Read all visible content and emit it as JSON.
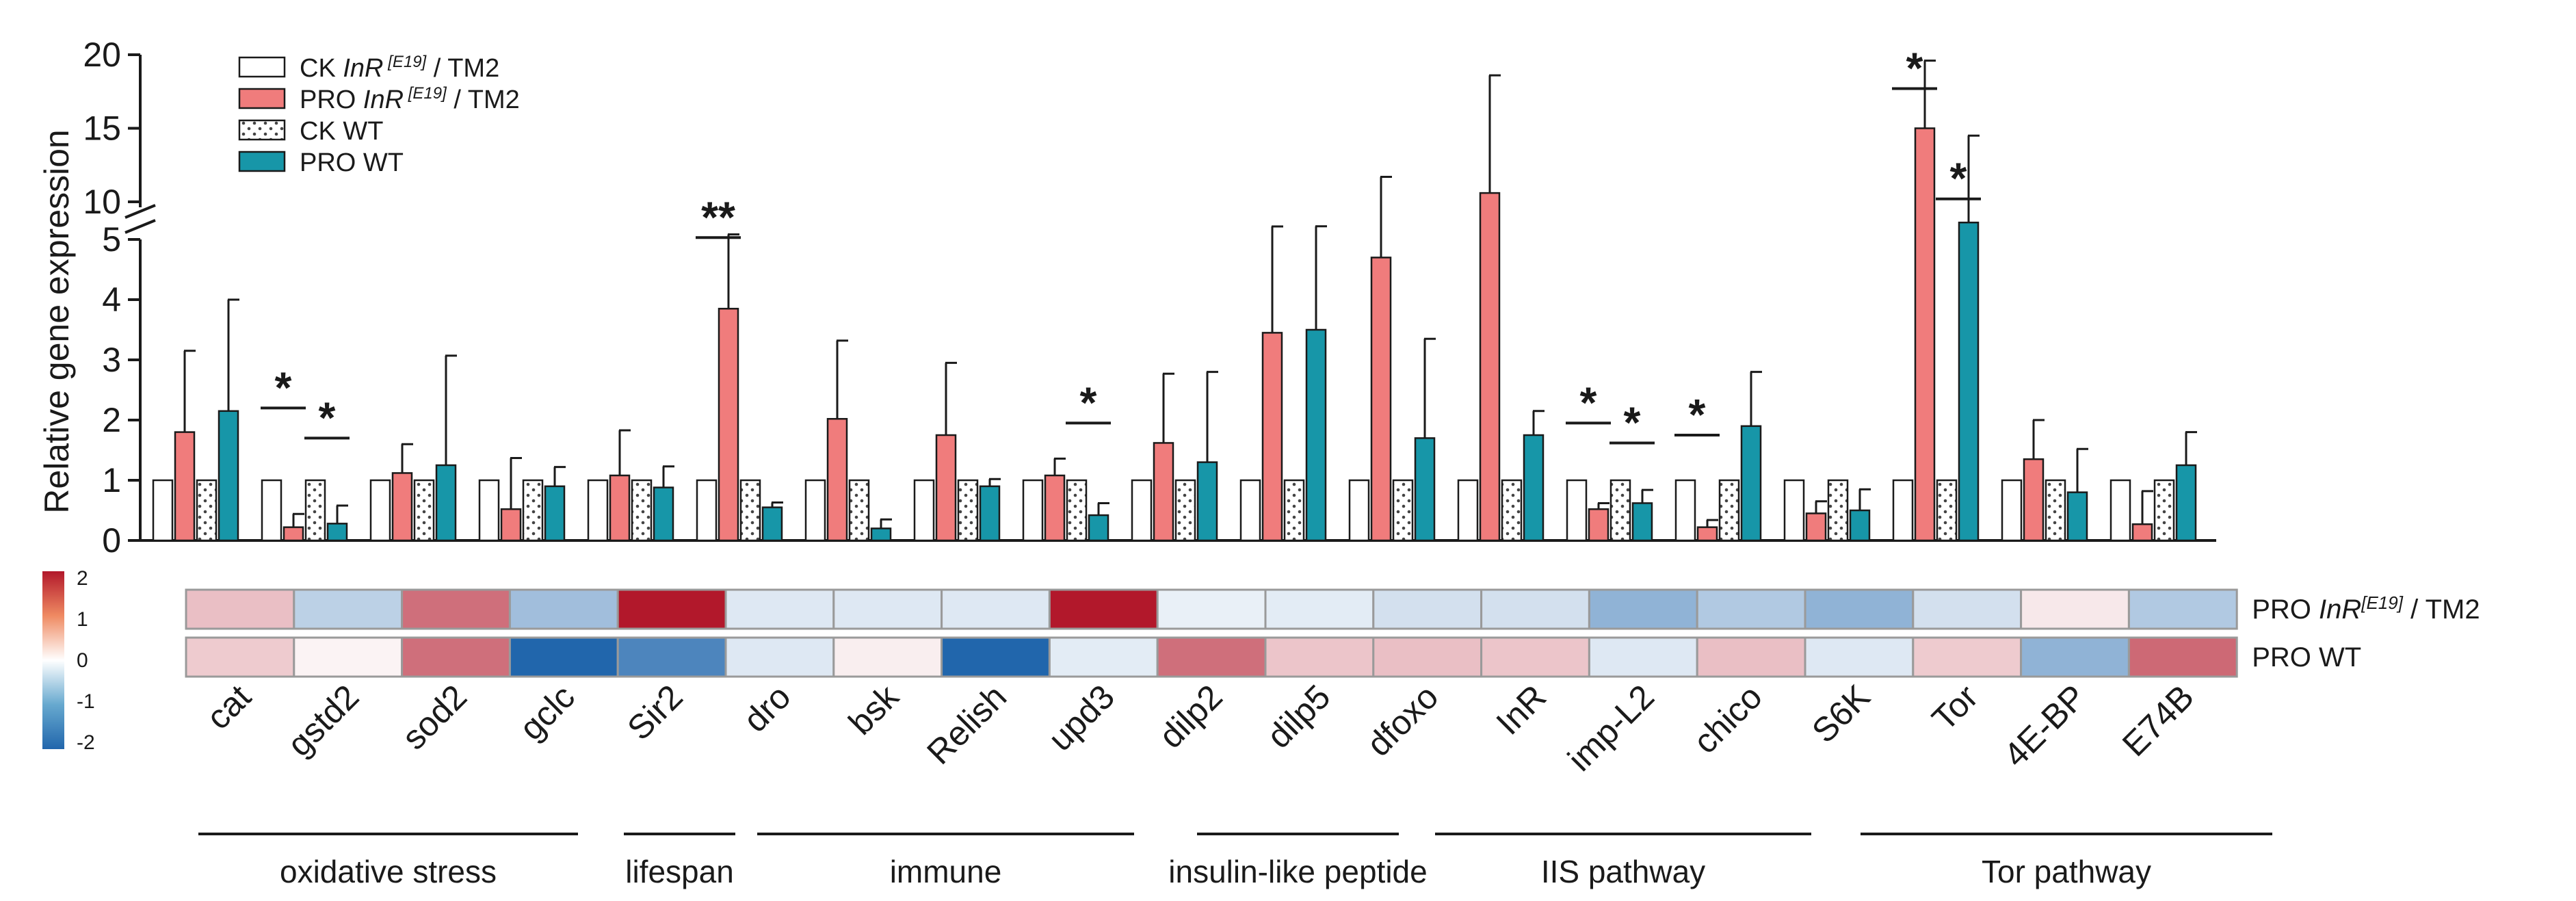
{
  "chart_data": {
    "type": "bar",
    "ylabel": "Relative gene expression",
    "y_axis": {
      "broken": true,
      "lower_range": [
        0,
        5
      ],
      "upper_range": [
        10,
        20
      ],
      "lower_ticks": [
        "0",
        "1",
        "2",
        "3",
        "4",
        "5"
      ],
      "upper_ticks": [
        "10",
        "15",
        "20"
      ]
    },
    "categories": [
      "cat",
      "gstd2",
      "sod2",
      "gclc",
      "Sir2",
      "dro",
      "bsk",
      "Relish",
      "upd3",
      "dilp2",
      "dilp5",
      "dfoxo",
      "InR",
      "imp-L2",
      "chico",
      "S6K",
      "Tor",
      "4E-BP",
      "E74B"
    ],
    "legend": {
      "placement": "top-left",
      "entries": [
        {
          "prefix": "CK ",
          "gene": "InR",
          "allele": " [E19]",
          "suffix": " / TM2",
          "fill": "#ffffff",
          "pattern": "none"
        },
        {
          "prefix": "PRO ",
          "gene": "InR",
          "allele": " [E19]",
          "suffix": " / TM2",
          "fill": "#f07c7c",
          "pattern": "none"
        },
        {
          "prefix": "CK WT",
          "gene": "",
          "allele": "",
          "suffix": "",
          "fill": "#ffffff",
          "pattern": "dots"
        },
        {
          "prefix": "PRO WT",
          "gene": "",
          "allele": "",
          "suffix": "",
          "fill": "#1796a8",
          "pattern": "none"
        }
      ]
    },
    "series": [
      {
        "values": [
          1,
          1,
          1,
          1,
          1,
          1,
          1,
          1,
          1,
          1,
          1,
          1,
          1,
          1,
          1,
          1,
          1,
          1,
          1
        ],
        "errors": [
          0,
          0,
          0,
          0,
          0,
          0,
          0,
          0,
          0,
          0,
          0,
          0,
          0,
          0,
          0,
          0,
          0,
          0,
          0
        ],
        "color": "#ffffff",
        "pattern": "none"
      },
      {
        "values": [
          1.8,
          0.22,
          1.12,
          0.52,
          1.08,
          3.85,
          2.02,
          1.75,
          1.08,
          1.62,
          3.45,
          4.7,
          10.6,
          0.52,
          0.22,
          0.45,
          15.0,
          1.35,
          0.27
        ],
        "errors": [
          1.35,
          0.22,
          0.48,
          0.85,
          0.75,
          2.5,
          1.3,
          1.2,
          0.28,
          1.15,
          5.0,
          7.0,
          8.0,
          0.1,
          0.12,
          0.2,
          14.0,
          0.65,
          0.55
        ],
        "color": "#f07c7c",
        "pattern": "none"
      },
      {
        "values": [
          1,
          1,
          1,
          1,
          1,
          1,
          1,
          1,
          1,
          1,
          1,
          1,
          1,
          1,
          1,
          1,
          1,
          1,
          1
        ],
        "errors": [
          0,
          0,
          0,
          0,
          0,
          0,
          0,
          0,
          0,
          0,
          0,
          0,
          0,
          0,
          0,
          0,
          0,
          0,
          0
        ],
        "color": "#ffffff",
        "pattern": "dots"
      },
      {
        "values": [
          2.15,
          0.28,
          1.25,
          0.9,
          0.88,
          0.55,
          0.2,
          0.9,
          0.42,
          1.3,
          3.5,
          1.7,
          1.75,
          0.62,
          1.9,
          0.5,
          9.5,
          0.8,
          1.25
        ],
        "errors": [
          1.85,
          0.3,
          1.82,
          0.32,
          0.35,
          0.08,
          0.15,
          0.12,
          0.2,
          1.5,
          5.0,
          1.65,
          0.4,
          0.22,
          0.9,
          0.35,
          5.0,
          0.72,
          0.55
        ],
        "color": "#1796a8",
        "pattern": "none"
      }
    ],
    "significance": [
      {
        "category": "gstd2",
        "pair": "InR",
        "label": "*",
        "y": 2.2
      },
      {
        "category": "gstd2",
        "pair": "WT",
        "label": "*",
        "y": 1.7
      },
      {
        "category": "dro",
        "pair": "InR",
        "label": "**",
        "y": 5.5
      },
      {
        "category": "upd3",
        "pair": "WT",
        "label": "*",
        "y": 1.95
      },
      {
        "category": "imp-L2",
        "pair": "InR",
        "label": "*",
        "y": 1.95
      },
      {
        "category": "imp-L2",
        "pair": "WT",
        "label": "*",
        "y": 1.62
      },
      {
        "category": "chico",
        "pair": "InR",
        "label": "*",
        "y": 1.75
      },
      {
        "category": "Tor",
        "pair": "InR",
        "label": "*",
        "y": 17.7
      },
      {
        "category": "Tor",
        "pair": "WT",
        "label": "*",
        "y": 10.2
      }
    ],
    "heatmap": {
      "rows": [
        {
          "prefix": "PRO ",
          "gene": "InR",
          "allele": "[E19]",
          "suffix": " / TM2",
          "values": [
            0.55,
            -0.6,
            1.25,
            -0.85,
            2.0,
            -0.3,
            -0.3,
            -0.3,
            2.0,
            -0.2,
            -0.25,
            -0.4,
            -0.4,
            -1.0,
            -0.7,
            -1.0,
            -0.4,
            0.2,
            -0.7
          ]
        },
        {
          "prefix": "PRO WT",
          "gene": "",
          "allele": "",
          "suffix": "",
          "values": [
            0.45,
            0.1,
            1.25,
            -2.0,
            -1.6,
            -0.3,
            0.15,
            -2.0,
            -0.25,
            1.25,
            0.5,
            0.55,
            0.5,
            -0.3,
            0.55,
            -0.3,
            0.45,
            -1.0,
            1.3
          ]
        }
      ],
      "colorbar": {
        "range": [
          -2,
          2
        ],
        "ticks": [
          "2",
          "1",
          "0",
          "-1",
          "-2"
        ],
        "low_color": "#2166ac",
        "mid_color": "#ffffff",
        "high_color": "#b2182b"
      }
    },
    "groups": [
      {
        "label": "oxidative stress",
        "categories": [
          "cat",
          "gstd2",
          "sod2",
          "gclc"
        ]
      },
      {
        "label": "lifespan",
        "categories": [
          "Sir2"
        ]
      },
      {
        "label": "immune",
        "categories": [
          "dro",
          "bsk",
          "Relish",
          "upd3"
        ]
      },
      {
        "label": "insulin-like peptide",
        "categories": [
          "dilp2",
          "dilp5"
        ]
      },
      {
        "label": "IIS pathway",
        "categories": [
          "dfoxo",
          "InR",
          "imp-L2",
          "chico"
        ]
      },
      {
        "label": "Tor pathway",
        "categories": [
          "S6K",
          "Tor",
          "4E-BP",
          "E74B"
        ]
      }
    ]
  }
}
